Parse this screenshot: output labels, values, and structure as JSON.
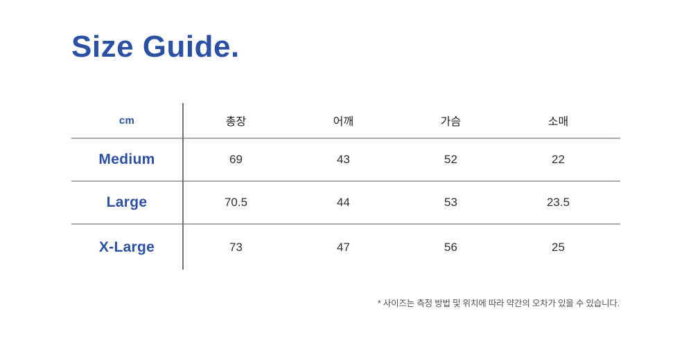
{
  "title": {
    "text": "Size Guide."
  },
  "table": {
    "unit_label": "cm",
    "columns": [
      {
        "label": "총장"
      },
      {
        "label": "어깨"
      },
      {
        "label": "가슴"
      },
      {
        "label": "소매"
      }
    ],
    "rows": [
      {
        "label": "Medium",
        "values": [
          "69",
          "43",
          "52",
          "22"
        ]
      },
      {
        "label": "Large",
        "values": [
          "70.5",
          "44",
          "53",
          "23.5"
        ]
      },
      {
        "label": "X-Large",
        "values": [
          "73",
          "47",
          "56",
          "25"
        ]
      }
    ]
  },
  "footnote": {
    "text": "* 사이즈는 측정 방법 및 위치에 따라 약간의 오차가 있을 수 있습니다."
  },
  "colors": {
    "accent_blue": "#2b4fa3",
    "header_text": "#1e1e1e",
    "value_text": "#2e2e2e",
    "horizontal_rule": "#ababab",
    "vertical_rule": "#707070",
    "footnote_text": "#4e4e4e",
    "background": "#ffffff"
  }
}
